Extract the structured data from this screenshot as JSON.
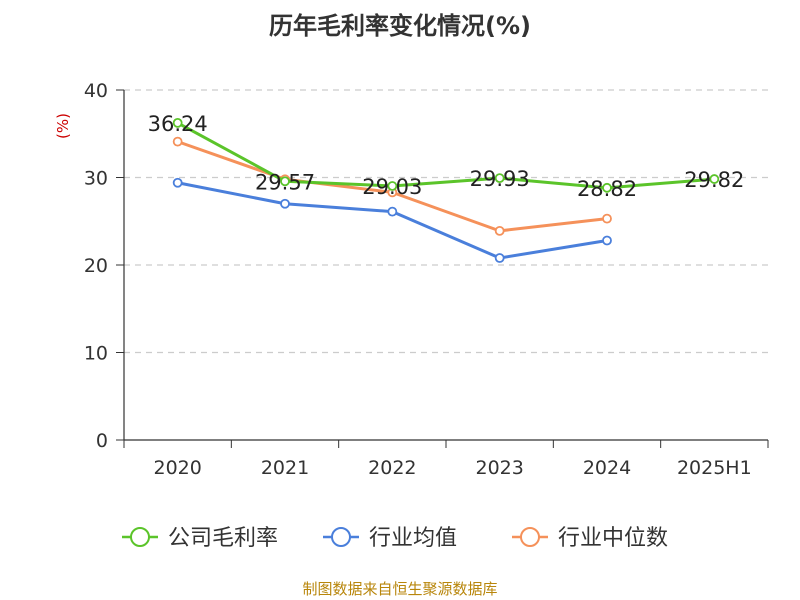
{
  "title": "历年毛利率变化情况(%)",
  "source": "制图数据来自恒生聚源数据库",
  "colors": {
    "source": "#b8860b",
    "ylabel": "#cc0000",
    "axis": "#333333",
    "grid": "#cccccc"
  },
  "chart_data": {
    "type": "line",
    "categories": [
      "2020",
      "2021",
      "2022",
      "2023",
      "2024",
      "2025H1"
    ],
    "ylabel": "(%)",
    "ylim": [
      0,
      40
    ],
    "yticks": [
      0,
      10,
      20,
      30,
      40
    ],
    "grid": "horizontal dashed",
    "legend_position": "bottom",
    "series": [
      {
        "name": "公司毛利率",
        "color": "#5bc42a",
        "values": [
          36.24,
          29.57,
          29.03,
          29.93,
          28.82,
          29.82
        ],
        "labels": [
          "36.24",
          "29.57",
          "29.03",
          "29.93",
          "28.82",
          "29.82"
        ]
      },
      {
        "name": "行业均值",
        "color": "#4a7fdb",
        "values": [
          29.4,
          27.0,
          26.1,
          20.8,
          22.8,
          null
        ]
      },
      {
        "name": "行业中位数",
        "color": "#f5915a",
        "values": [
          34.1,
          29.8,
          28.3,
          23.9,
          25.3,
          null
        ]
      }
    ]
  }
}
